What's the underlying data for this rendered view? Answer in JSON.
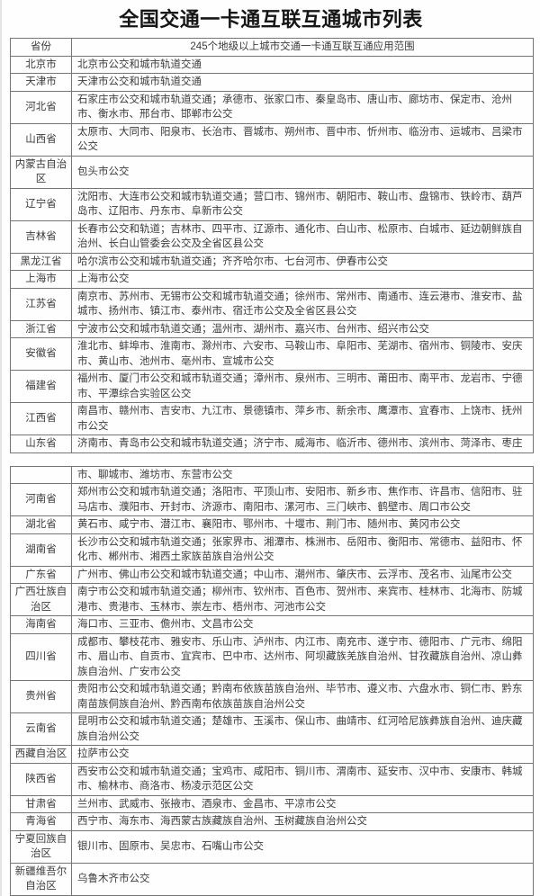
{
  "page": {
    "title": "全国交通一卡通互联互通城市列表"
  },
  "colors": {
    "border": "#757575",
    "text": "#3c3c3c",
    "title": "#161616",
    "background": "#ffffff"
  },
  "table1": {
    "header": {
      "province": "省份",
      "scope": "245个地级以上城市交通一卡通互联互通应用范围"
    },
    "rows": [
      {
        "province": "北京市",
        "cities": "北京市公交和城市轨道交通"
      },
      {
        "province": "天津市",
        "cities": "天津市公交和城市轨道交通"
      },
      {
        "province": "河北省",
        "cities": "石家庄市公交和城市轨道交通；承德市、张家口市、秦皇岛市、唐山市、廊坊市、保定市、沧州市、衡水市、邢台市、邯郸市公交"
      },
      {
        "province": "山西省",
        "cities": "太原市、大同市、阳泉市、长治市、晋城市、朔州市、晋中市、忻州市、临汾市、运城市、吕梁市公交"
      },
      {
        "province": "内蒙古自治区",
        "cities": "包头市公交"
      },
      {
        "province": "辽宁省",
        "cities": "沈阳市、大连市公交和城市轨道交通；营口市、锦州市、朝阳市、鞍山市、盘锦市、铁岭市、葫芦岛市、辽阳市、丹东市、阜新市公交"
      },
      {
        "province": "吉林省",
        "cities": "长春市公交和轨道；吉林市、四平市、辽源市、通化市、白山市、松原市、白城市、延边朝鲜族自治州、长白山管委会公交及全省区县公交"
      },
      {
        "province": "黑龙江省",
        "cities": "哈尔滨市公交和城市轨道交通；齐齐哈尔市、七台河市、伊春市公交"
      },
      {
        "province": "上海市",
        "cities": "上海市公交"
      },
      {
        "province": "江苏省",
        "cities": "南京市、苏州市、无锡市公交和城市轨道交通；徐州市、常州市、南通市、连云港市、淮安市、盐城市、扬州市、镇江市、泰州市、宿迁市公交及全省区县公交"
      },
      {
        "province": "浙江省",
        "cities": "宁波市公交和城市轨道交通；温州市、湖州市、嘉兴市、台州市、绍兴市公交"
      },
      {
        "province": "安徽省",
        "cities": "淮北市、蚌埠市、淮南市、滁州市、六安市、马鞍山市、阜阳市、芜湖市、宿州市、铜陵市、安庆市、黄山市、池州市、亳州市、宣城市公交"
      },
      {
        "province": "福建省",
        "cities": "福州市、厦门市公交和城市轨道交通；漳州市、泉州市、三明市、莆田市、南平市、龙岩市、宁德市、平潭综合实验区公交"
      },
      {
        "province": "江西省",
        "cities": "南昌市、赣州市、吉安市、九江市、景德镇市、萍乡市、新余市、鹰潭市、宜春市、上饶市、抚州市公交"
      },
      {
        "province": "山东省",
        "cities": "济南市、青岛市公交和城市轨道交通；济宁市、威海市、临沂市、德州市、滨州市、菏泽市、枣庄"
      }
    ]
  },
  "table2": {
    "rows": [
      {
        "province": "",
        "cities": "市、聊城市、潍坊市、东营市公交"
      },
      {
        "province": "河南省",
        "cities": "郑州市公交和城市轨道交通；洛阳市、平顶山市、安阳市、新乡市、焦作市、许昌市、信阳市、驻马店市、濮阳市、开封市、济源市、南阳市、漯河市、三门峡市、鹤壁市、周口市公交"
      },
      {
        "province": "湖北省",
        "cities": "黄石市、咸宁市、潜江市、襄阳市、鄂州市、十堰市、荆门市、随州市、黄冈市公交"
      },
      {
        "province": "湖南省",
        "cities": "长沙市公交和城市轨道交通；张家界市、湘潭市、株洲市、岳阳市、衡阳市、常德市、益阳市、怀化市、郴州市、湘西土家族苗族自治州公交"
      },
      {
        "province": "广东省",
        "cities": "广州市、佛山市公交和城市轨道交通；中山市、潮州市、肇庆市、云浮市、茂名市、汕尾市公交"
      },
      {
        "province": "广西壮族自治区",
        "cities": "南宁市公交和城市轨道交通；柳州市、钦州市、百色市、贺州市、来宾市、桂林市、北海市、防城港市、贵港市、玉林市、崇左市、梧州市、河池市公交"
      },
      {
        "province": "海南省",
        "cities": "海口市、三亚市、儋州市、文昌市公交"
      },
      {
        "province": "四川省",
        "cities": "成都市、攀枝花市、雅安市、乐山市、泸州市、内江市、南充市、遂宁市、德阳市、广元市、绵阳市、眉山市、自贡市、宜宾市、巴中市、达州市、阿坝藏族羌族自治州、甘孜藏族自治州、凉山彝族自治州、广安市公交"
      },
      {
        "province": "贵州省",
        "cities": "贵阳市公交和城市轨道交通；黔南布依族苗族自治州、毕节市、遵义市、六盘水市、铜仁市、黔东南苗族侗族自治州、黔西南布依族苗族自治州公交"
      },
      {
        "province": "云南省",
        "cities": "昆明市公交和城市轨道交通；楚雄市、玉溪市、保山市、曲靖市、红河哈尼族彝族自治州、迪庆藏族自治州公交"
      },
      {
        "province": "西藏自治区",
        "cities": "拉萨市公交"
      },
      {
        "province": "陕西省",
        "cities": "西安市公交和城市轨道交通；宝鸡市、咸阳市、铜川市、渭南市、延安市、汉中市、安康市、韩城市、榆林市、商洛市、杨凌示范区公交"
      },
      {
        "province": "甘肃省",
        "cities": "兰州市、武威市、张掖市、酒泉市、金昌市、平凉市公交"
      },
      {
        "province": "青海省",
        "cities": "西宁市、海东市、海西蒙古族藏族自治州、玉树藏族自治州公交"
      },
      {
        "province": "宁夏回族自治区",
        "cities": "银川市、固原市、吴忠市、石嘴山市公交"
      },
      {
        "province": "新疆维吾尔自治区",
        "cities": "乌鲁木齐市公交"
      }
    ]
  }
}
